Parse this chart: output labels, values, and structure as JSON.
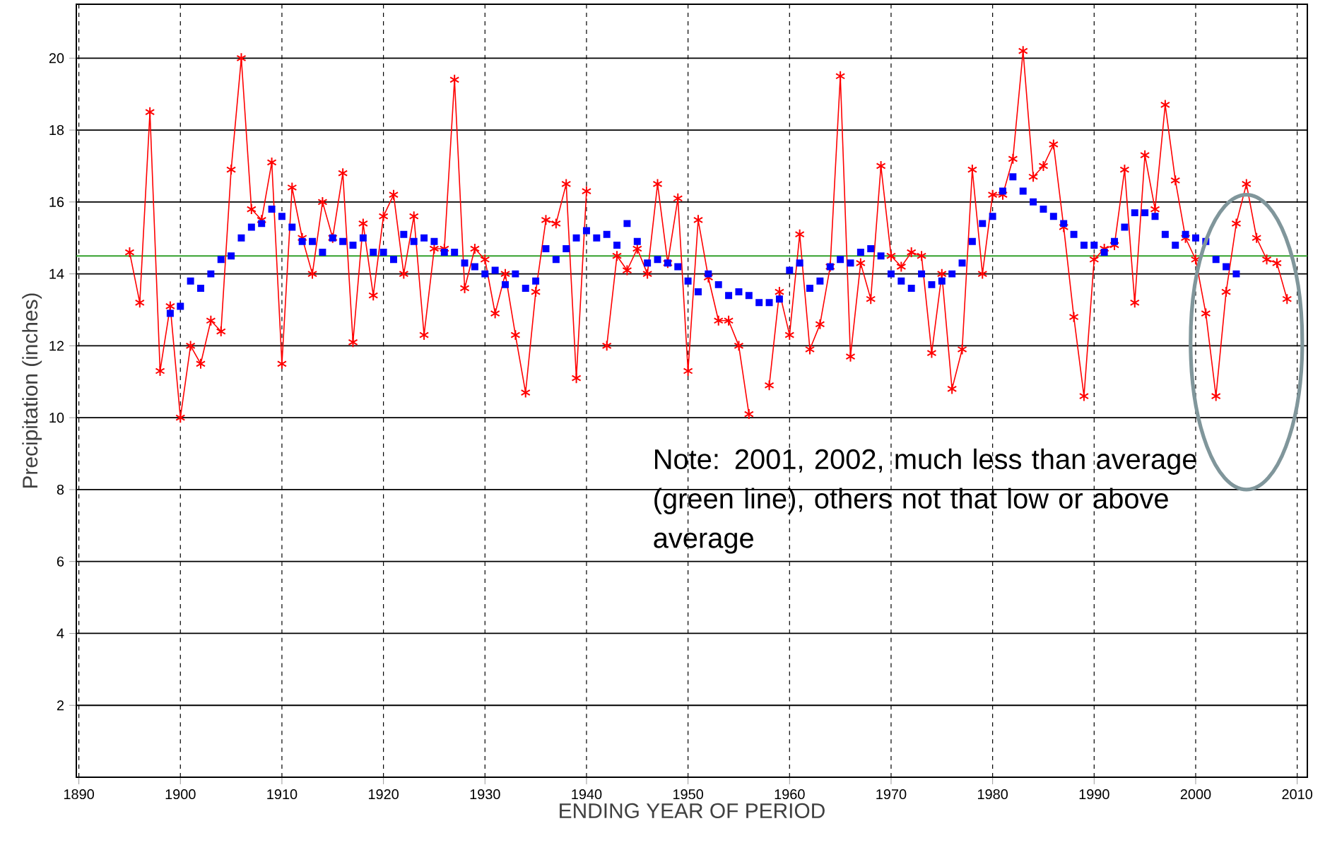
{
  "chart_data": {
    "type": "line",
    "xlabel": "ENDING YEAR OF PERIOD",
    "ylabel": "Precipitation (inches)",
    "xlim": [
      1889.75,
      2011
    ],
    "ylim": [
      0,
      21.5
    ],
    "xticks": [
      1890,
      1900,
      1910,
      1920,
      1930,
      1940,
      1950,
      1960,
      1970,
      1980,
      1990,
      2000,
      2010
    ],
    "yticks": [
      2,
      4,
      6,
      8,
      10,
      12,
      14,
      16,
      18,
      20
    ],
    "grid": true,
    "series": [
      {
        "type": "line",
        "color": "#ff0000",
        "marker": "cross",
        "x": [
          1895,
          1896,
          1897,
          1898,
          1899,
          1900,
          1901,
          1902,
          1903,
          1904,
          1905,
          1906,
          1907,
          1908,
          1909,
          1910,
          1911,
          1912,
          1913,
          1914,
          1915,
          1916,
          1917,
          1918,
          1919,
          1920,
          1921,
          1922,
          1923,
          1924,
          1925,
          1926,
          1927,
          1928,
          1929,
          1930,
          1931,
          1932,
          1933,
          1934,
          1935,
          1936,
          1937,
          1938,
          1939,
          1940,
          1941,
          1942,
          1943,
          1944,
          1945,
          1946,
          1947,
          1948,
          1949,
          1950,
          1951,
          1952,
          1953,
          1954,
          1955,
          1956,
          1957,
          1958,
          1959,
          1960,
          1961,
          1962,
          1963,
          1964,
          1965,
          1966,
          1967,
          1968,
          1969,
          1970,
          1971,
          1972,
          1973,
          1974,
          1975,
          1976,
          1977,
          1978,
          1979,
          1980,
          1981,
          1982,
          1983,
          1984,
          1985,
          1986,
          1987,
          1988,
          1989,
          1990,
          1991,
          1992,
          1993,
          1994,
          1995,
          1996,
          1997,
          1998,
          1999,
          2000,
          2001,
          2002,
          2003,
          2004,
          2005,
          2006,
          2007,
          2008,
          2009
        ],
        "values": [
          14.6,
          13.2,
          18.5,
          11.3,
          13.1,
          10.0,
          12.0,
          11.5,
          12.7,
          12.4,
          16.9,
          20.0,
          15.8,
          15.5,
          17.1,
          11.5,
          16.4,
          15.0,
          14.0,
          16.0,
          15.0,
          16.8,
          12.1,
          15.4,
          13.4,
          15.6,
          16.2,
          14.0,
          15.6,
          12.3,
          14.7,
          14.7,
          19.4,
          13.6,
          14.7,
          14.4,
          12.9,
          14.0,
          12.3,
          10.7,
          13.5,
          15.5,
          15.4,
          16.5,
          11.1,
          16.3,
          null,
          12.0,
          14.5,
          14.1,
          14.7,
          14.0,
          16.5,
          14.3,
          16.1,
          11.3,
          15.5,
          13.9,
          12.7,
          12.7,
          12.0,
          10.1,
          null,
          10.9,
          13.5,
          12.3,
          15.1,
          11.9,
          12.6,
          14.2,
          19.5,
          11.7,
          14.3,
          13.3,
          17.0,
          14.5,
          14.2,
          14.6,
          14.5,
          11.8,
          14.0,
          10.8,
          11.9,
          16.9,
          14.0,
          16.2,
          16.2,
          17.2,
          20.2,
          16.7,
          17.0,
          17.6,
          15.3,
          12.8,
          10.6,
          14.4,
          14.7,
          14.8,
          16.9,
          13.2,
          17.3,
          15.8,
          18.7,
          16.6,
          15.0,
          14.4,
          12.9,
          10.6,
          13.5,
          15.4,
          16.5,
          15.0,
          14.4,
          14.3,
          13.3
        ]
      },
      {
        "type": "scatter",
        "color": "#0000ff",
        "marker": "square",
        "x": [
          1899,
          1900,
          1901,
          1902,
          1903,
          1904,
          1905,
          1906,
          1907,
          1908,
          1909,
          1910,
          1911,
          1912,
          1913,
          1914,
          1915,
          1916,
          1917,
          1918,
          1919,
          1920,
          1921,
          1922,
          1923,
          1924,
          1925,
          1926,
          1927,
          1928,
          1929,
          1930,
          1931,
          1932,
          1933,
          1934,
          1935,
          1936,
          1937,
          1938,
          1939,
          1940,
          1941,
          1942,
          1943,
          1944,
          1945,
          1946,
          1947,
          1948,
          1949,
          1950,
          1951,
          1952,
          1953,
          1954,
          1955,
          1956,
          1957,
          1958,
          1959,
          1960,
          1961,
          1962,
          1963,
          1964,
          1965,
          1966,
          1967,
          1968,
          1969,
          1970,
          1971,
          1972,
          1973,
          1974,
          1975,
          1976,
          1977,
          1978,
          1979,
          1980,
          1981,
          1982,
          1983,
          1984,
          1985,
          1986,
          1987,
          1988,
          1989,
          1990,
          1991,
          1992,
          1993,
          1994,
          1995,
          1996,
          1997,
          1998,
          1999,
          2000,
          2001,
          2002,
          2003,
          2004
        ],
        "values": [
          12.9,
          13.1,
          13.8,
          13.6,
          14.0,
          14.4,
          14.5,
          15.0,
          15.3,
          15.4,
          15.8,
          15.6,
          15.3,
          14.9,
          14.9,
          14.6,
          15.0,
          14.9,
          14.8,
          15.0,
          14.6,
          14.6,
          14.4,
          15.1,
          14.9,
          15.0,
          14.9,
          14.6,
          14.6,
          14.3,
          14.2,
          14.0,
          14.1,
          13.7,
          14.0,
          13.6,
          13.8,
          14.7,
          14.4,
          14.7,
          15.0,
          15.2,
          15.0,
          15.1,
          14.8,
          15.4,
          14.9,
          14.3,
          14.4,
          14.3,
          14.2,
          13.8,
          13.5,
          14.0,
          13.7,
          13.4,
          13.5,
          13.4,
          13.2,
          13.2,
          13.3,
          14.1,
          14.3,
          13.6,
          13.8,
          14.2,
          14.4,
          14.3,
          14.6,
          14.7,
          14.5,
          14.0,
          13.8,
          13.6,
          14.0,
          13.7,
          13.8,
          14.0,
          14.3,
          14.9,
          15.4,
          15.6,
          16.3,
          16.7,
          16.3,
          16.0,
          15.8,
          15.6,
          15.4,
          15.1,
          14.8,
          14.8,
          14.6,
          14.9,
          15.3,
          15.7,
          15.7,
          15.6,
          15.1,
          14.8,
          15.1,
          15.0,
          14.9,
          14.4,
          14.2,
          14.0
        ]
      }
    ],
    "ref_lines": [
      {
        "axis": "y",
        "value": 14.5,
        "color": "#33a02c"
      }
    ],
    "annotations": [
      "Note: 2001, 2002, much less than average (green line), others not that low or above average"
    ]
  }
}
